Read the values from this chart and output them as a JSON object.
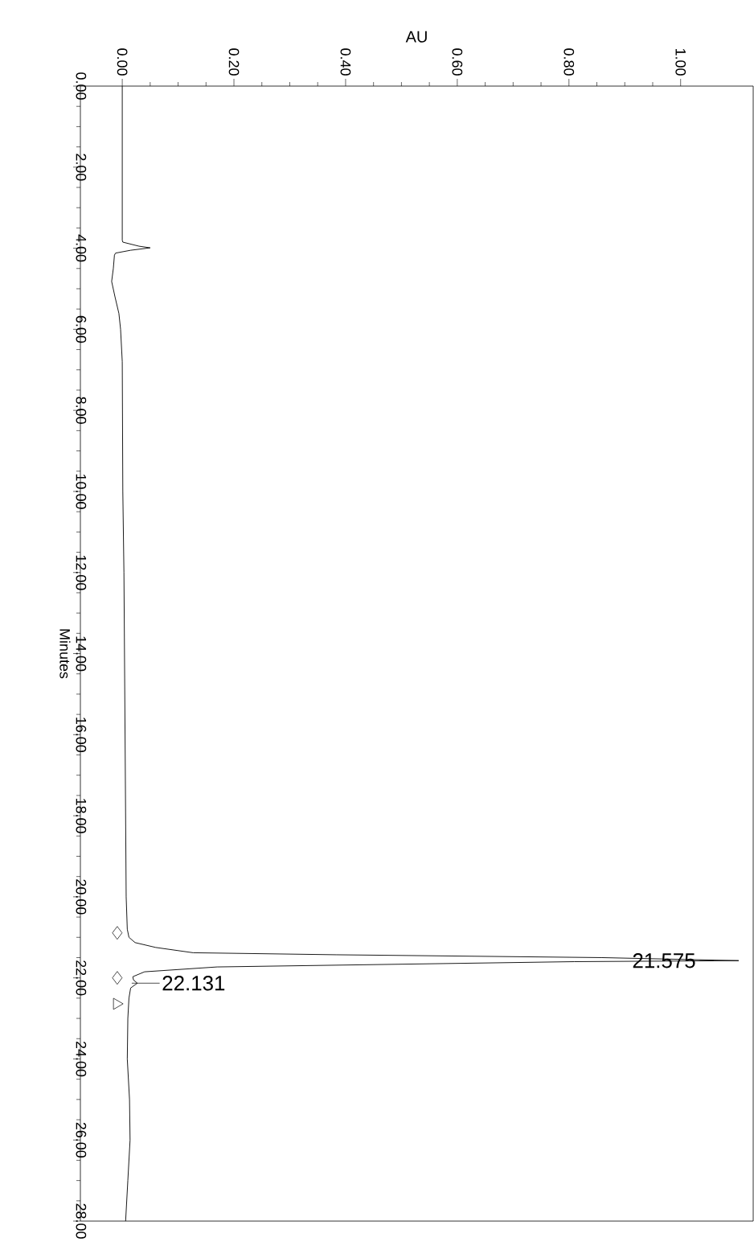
{
  "chart_data": {
    "type": "line",
    "xlabel": "AU",
    "ylabel": "Minutes",
    "xlim": [
      -0.075,
      1.13
    ],
    "ylim": [
      28,
      0
    ],
    "yticks": [
      {
        "value": 0,
        "label": "0.00"
      },
      {
        "value": 2,
        "label": "2.00"
      },
      {
        "value": 4,
        "label": "4.00"
      },
      {
        "value": 6,
        "label": "6.00"
      },
      {
        "value": 8,
        "label": "8.00"
      },
      {
        "value": 10,
        "label": "10.00"
      },
      {
        "value": 12,
        "label": "12.00"
      },
      {
        "value": 14,
        "label": "14.00"
      },
      {
        "value": 16,
        "label": "16.00"
      },
      {
        "value": 18,
        "label": "18.00"
      },
      {
        "value": 20,
        "label": "20.00"
      },
      {
        "value": 22,
        "label": "22.00"
      },
      {
        "value": 24,
        "label": "24.00"
      },
      {
        "value": 26,
        "label": "26.00"
      },
      {
        "value": 28,
        "label": "28.00"
      }
    ],
    "xticks": [
      {
        "value": 0,
        "label": "0.00"
      },
      {
        "value": 0.2,
        "label": "0.20"
      },
      {
        "value": 0.4,
        "label": "0.40"
      },
      {
        "value": 0.6,
        "label": "0.60"
      },
      {
        "value": 0.8,
        "label": "0.80"
      },
      {
        "value": 1.0,
        "label": "1.00"
      }
    ],
    "series": [
      {
        "color": "#000000",
        "values": [
          0,
          3.8,
          3.85,
          3.95,
          3.99,
          4.05,
          4.12,
          4.17,
          4.5,
          4.82,
          5.2,
          5.61,
          6.0,
          6.8,
          10,
          12,
          16,
          20,
          20.8,
          21.0,
          21.13,
          21.25,
          21.38,
          21.43,
          21.5,
          21.575,
          21.6,
          21.73,
          21.85,
          21.97,
          22.05,
          22.131,
          22.25,
          22.5,
          23,
          24,
          25,
          26,
          27,
          28
        ],
        "x": [
          0.0,
          0.0,
          0.001,
          0.03,
          0.05,
          0.015,
          -0.012,
          -0.014,
          -0.016,
          -0.019,
          -0.013,
          -0.006,
          -0.003,
          0.0,
          0.001,
          0.003,
          0.005,
          0.007,
          0.009,
          0.012,
          0.023,
          0.06,
          0.127,
          0.384,
          0.858,
          1.104,
          0.81,
          0.17,
          0.04,
          0.019,
          0.02,
          0.027,
          0.015,
          0.012,
          0.01,
          0.009,
          0.013,
          0.014,
          0.01,
          0.006
        ]
      },
      {
        "type": "scatter",
        "marker": "diamond",
        "color": "#000000",
        "values": [
          20.89,
          22.0
        ],
        "x": [
          -0.009,
          -0.009
        ]
      },
      {
        "type": "scatter",
        "marker": "triangle",
        "color": "#000000",
        "values": [
          22.64
        ],
        "x": [
          -0.01
        ]
      }
    ],
    "annotations": [
      {
        "text": "21.575",
        "y": 21.575,
        "x": 1.104
      },
      {
        "text": "22.131",
        "y": 22.131,
        "x": 0.027
      }
    ]
  }
}
